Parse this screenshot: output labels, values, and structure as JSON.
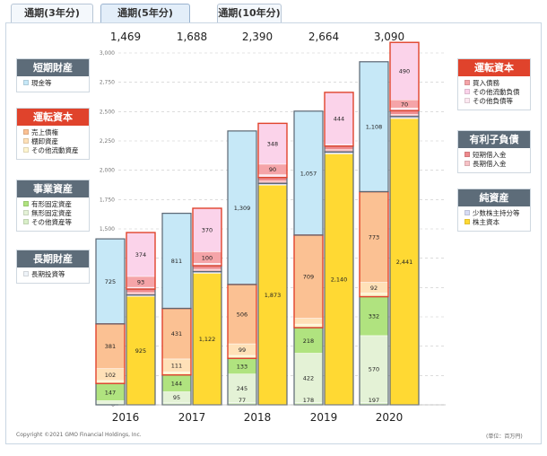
{
  "tabs": [
    "通期(3年分)",
    "通期(5年分)",
    "通期(10年分)"
  ],
  "active_tab": "通期(5年分)",
  "legends_left": [
    {
      "title": "短期財産",
      "style": "gray",
      "items": [
        {
          "label": "現金等",
          "color": "#c6e8f7"
        }
      ]
    },
    {
      "title": "運転資本",
      "style": "red",
      "items": [
        {
          "label": "売上債権",
          "color": "#fbc193"
        },
        {
          "label": "棚卸資産",
          "color": "#ffe1b8"
        },
        {
          "label": "その他流動資産",
          "color": "#fff5cf"
        }
      ]
    },
    {
      "title": "事業資産",
      "style": "gray",
      "items": [
        {
          "label": "有形固定資産",
          "color": "#b0e37f"
        },
        {
          "label": "無形固定資産",
          "color": "#e4f2d6"
        },
        {
          "label": "その他資産等",
          "color": "#d9efc8"
        }
      ]
    },
    {
      "title": "長期財産",
      "style": "gray",
      "items": [
        {
          "label": "長期投資等",
          "color": "#eef3f8"
        }
      ]
    }
  ],
  "legends_right": [
    {
      "title": "運転資本",
      "style": "red",
      "items": [
        {
          "label": "買入債務",
          "color": "#f5a4a8"
        },
        {
          "label": "その他流動負債",
          "color": "#fbd3ea"
        },
        {
          "label": "その他負債等",
          "color": "#fde8f1"
        }
      ]
    },
    {
      "title": "有利子負債",
      "style": "gray",
      "items": [
        {
          "label": "短期借入金",
          "color": "#ee8a8d"
        },
        {
          "label": "長期借入金",
          "color": "#f7c2c6"
        }
      ]
    },
    {
      "title": "純資産",
      "style": "gray",
      "items": [
        {
          "label": "少数株主持分等",
          "color": "#d7dcf5"
        },
        {
          "label": "株主資本",
          "color": "#ffd933"
        }
      ]
    }
  ],
  "chart_data": {
    "type": "bar",
    "stacked": true,
    "categories": [
      "2016",
      "2017",
      "2018",
      "2019",
      "2020"
    ],
    "totals": [
      "1,469",
      "1,688",
      "2,390",
      "2,664",
      "3,090"
    ],
    "ylim": [
      0,
      3000
    ],
    "yticks": [
      0,
      250,
      500,
      750,
      1000,
      1250,
      1500,
      1750,
      2000,
      2250,
      2500,
      2750,
      3000
    ],
    "ytick_labels": [
      "0",
      "250",
      "500",
      "750",
      "1,000",
      "1,250",
      "1,500",
      "1,750",
      "2,000",
      "2,250",
      "2,500",
      "2,750",
      "3,000"
    ],
    "grid": true,
    "assets_series": [
      {
        "name": "その他資産等",
        "color": "#d9efc8",
        "values": [
          15,
          16,
          18,
          18,
          20
        ],
        "labels": [
          "",
          "",
          "",
          "",
          ""
        ]
      },
      {
        "name": "無形固定資産",
        "color": "#e4f2d6",
        "values": [
          20,
          95,
          245,
          422,
          570
        ],
        "labels": [
          "",
          "95",
          "245",
          "422",
          "570"
        ]
      },
      {
        "name": "有形固定資産",
        "color": "#b0e37f",
        "values": [
          147,
          144,
          133,
          218,
          332
        ],
        "labels": [
          "147",
          "144",
          "133",
          "218",
          "332"
        ]
      },
      {
        "name": "その他流動資産",
        "color": "#fff5cf",
        "values": [
          25,
          25,
          25,
          30,
          30
        ],
        "labels": [
          "",
          "",
          "",
          "",
          ""
        ]
      },
      {
        "name": "棚卸資産",
        "color": "#ffe1b8",
        "values": [
          102,
          111,
          99,
          50,
          92
        ],
        "labels": [
          "102",
          "111",
          "99",
          "",
          "92"
        ]
      },
      {
        "name": "売上債権",
        "color": "#fbc193",
        "values": [
          381,
          431,
          506,
          709,
          773
        ],
        "labels": [
          "381",
          "431",
          "506",
          "709",
          "773"
        ]
      },
      {
        "name": "現金等",
        "color": "#c6e8f7",
        "values": [
          725,
          811,
          1309,
          1057,
          1108
        ],
        "labels": [
          "725",
          "811",
          "1,309",
          "1,057",
          "1,108"
        ]
      }
    ],
    "assets_bottom_labels": [
      "",
      "",
      "77",
      "178",
      "197"
    ],
    "liabilities_series": [
      {
        "name": "株主資本",
        "color": "#ffd933",
        "values": [
          925,
          1122,
          1873,
          2140,
          2441
        ],
        "labels": [
          "925",
          "1,122",
          "1,873",
          "2,140",
          "2,441"
        ]
      },
      {
        "name": "少数株主持分等",
        "color": "#d7dcf5",
        "values": [
          12,
          14,
          15,
          16,
          17
        ],
        "labels": [
          "",
          "",
          "",
          "",
          ""
        ]
      },
      {
        "name": "長期借入金",
        "color": "#f7c2c6",
        "values": [
          20,
          20,
          20,
          20,
          20
        ],
        "labels": [
          "",
          "",
          "",
          "",
          ""
        ]
      },
      {
        "name": "短期借入金",
        "color": "#ee8a8d",
        "values": [
          30,
          30,
          30,
          30,
          30
        ],
        "labels": [
          "",
          "",
          "",
          "",
          ""
        ]
      },
      {
        "name": "その他負債等",
        "color": "#fde8f1",
        "values": [
          15,
          20,
          24,
          14,
          22
        ],
        "labels": [
          "",
          "",
          "",
          "",
          ""
        ]
      },
      {
        "name": "買入債務",
        "color": "#f5a4a8",
        "values": [
          93,
          100,
          90,
          0,
          70
        ],
        "labels": [
          "93",
          "100",
          "90",
          "",
          "70"
        ]
      },
      {
        "name": "その他流動負債",
        "color": "#fbd3ea",
        "values": [
          374,
          370,
          348,
          444,
          490
        ],
        "labels": [
          "374",
          "370",
          "348",
          "444",
          "490"
        ]
      }
    ]
  },
  "footer": {
    "copyright": "Copyright ©2021 GMO Financial Holdings, Inc.",
    "unit": "(単位：百万円)"
  }
}
